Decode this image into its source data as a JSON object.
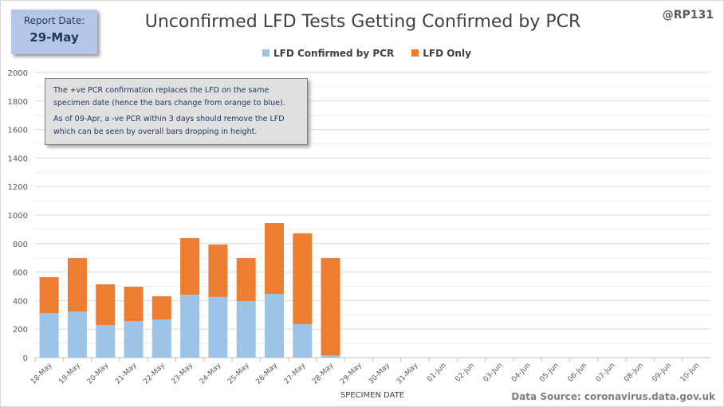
{
  "report": {
    "label": "Report Date:",
    "date": "29-May"
  },
  "handle": "@RP131",
  "source": "Data Source: coronavirus.data.gov.uk",
  "note": {
    "p1": "The +ve PCR confirmation replaces the LFD on the same specimen date (hence the bars change from orange to blue).",
    "p2": "As of 09-Apr, a -ve PCR within 3 days should remove the LFD which can be seen by overall bars dropping  in height."
  },
  "colors": {
    "confirmed": "#9dc3e6",
    "lfd_only": "#ed7d31"
  },
  "chart_data": {
    "type": "bar",
    "stacked": true,
    "title": "Unconfirmed LFD Tests Getting Confirmed by PCR",
    "xlabel": "SPECIMEN DATE",
    "ylabel": "",
    "ylim": [
      0,
      2000
    ],
    "yticks": [
      0,
      200,
      400,
      600,
      800,
      1000,
      1200,
      1400,
      1600,
      1800,
      2000
    ],
    "grid": true,
    "legend_position": "top",
    "categories": [
      "18-May",
      "19-May",
      "20-May",
      "21-May",
      "22-May",
      "23-May",
      "24-May",
      "25-May",
      "26-May",
      "27-May",
      "28-May",
      "29-May",
      "30-May",
      "31-May",
      "01-Jun",
      "02-Jun",
      "03-Jun",
      "04-Jun",
      "05-Jun",
      "06-Jun",
      "07-Jun",
      "08-Jun",
      "09-Jun",
      "10-Jun"
    ],
    "series": [
      {
        "name": "LFD Confirmed by PCR",
        "values": [
          313,
          324,
          229,
          257,
          268,
          441,
          425,
          397,
          447,
          235,
          15,
          0,
          0,
          0,
          0,
          0,
          0,
          0,
          0,
          0,
          0,
          0,
          0,
          0
        ]
      },
      {
        "name": "LFD Only",
        "values": [
          251,
          374,
          285,
          240,
          162,
          397,
          368,
          301,
          497,
          637,
          683,
          0,
          0,
          0,
          0,
          0,
          0,
          0,
          0,
          0,
          0,
          0,
          0,
          0
        ]
      }
    ]
  }
}
